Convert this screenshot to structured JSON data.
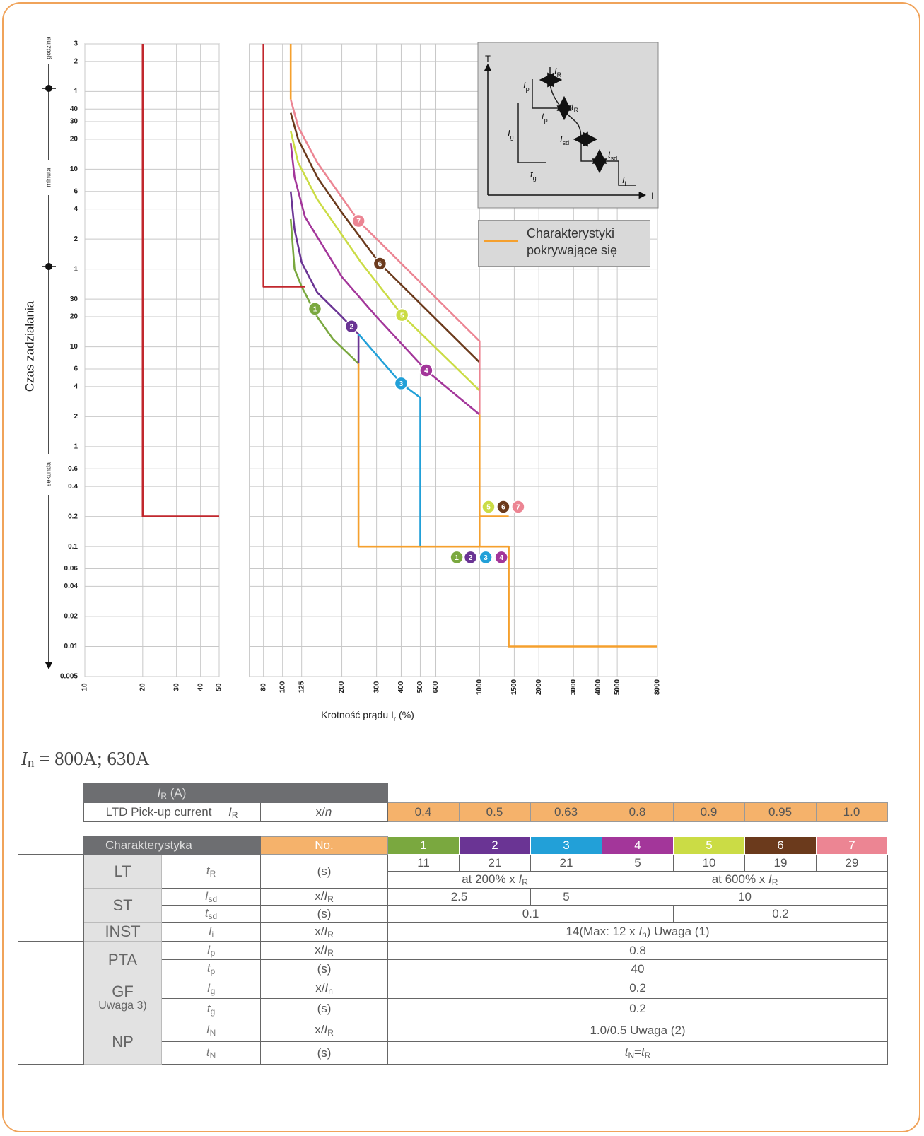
{
  "chart_data": [
    {
      "type": "line",
      "ylabel": "Czas zadziałania",
      "xlim": [
        10,
        50
      ],
      "xticks": [
        10,
        20,
        30,
        40,
        50
      ],
      "log_x": true,
      "ylim": [
        0.005,
        10800
      ],
      "log_y": true,
      "grid": true,
      "ytick_labels": true,
      "yticks": [
        {
          "value": 10800,
          "label": "3"
        },
        {
          "value": 7200,
          "label": "2"
        },
        {
          "value": 3600,
          "label": "1"
        },
        {
          "value": 2400,
          "label": "40"
        },
        {
          "value": 1800,
          "label": "30"
        },
        {
          "value": 1200,
          "label": "20"
        },
        {
          "value": 600,
          "label": "10"
        },
        {
          "value": 360,
          "label": "6"
        },
        {
          "value": 240,
          "label": "4"
        },
        {
          "value": 120,
          "label": "2"
        },
        {
          "value": 60,
          "label": "1"
        },
        30,
        20,
        10,
        6,
        4,
        2,
        1,
        0.6,
        0.4,
        0.2,
        0.1,
        0.06,
        0.04,
        0.02,
        0.01,
        0.005
      ],
      "time_units": [
        "godzina",
        "minuta",
        "sekunda"
      ],
      "series": [
        {
          "color": "#c1272d",
          "x": [
            20,
            20,
            50
          ],
          "values": [
            10800,
            0.2,
            0.2
          ]
        }
      ]
    },
    {
      "type": "line",
      "xlabel": [
        {
          "t": "Krotność prądu I"
        },
        {
          "t": "r",
          "s": "sub"
        },
        {
          "t": " (%)"
        }
      ],
      "xlim": [
        68,
        8000
      ],
      "xticks": [
        80,
        100,
        125,
        200,
        300,
        400,
        500,
        600,
        1000,
        1500,
        2000,
        3000,
        4000,
        5000,
        8000
      ],
      "log_x": true,
      "ylim": [
        0.005,
        10800
      ],
      "log_y": true,
      "grid": true,
      "ytick_labels": false,
      "yticks": [
        10800,
        7200,
        3600,
        2400,
        1800,
        1200,
        600,
        360,
        240,
        120,
        60,
        30,
        20,
        10,
        6,
        4,
        2,
        1,
        0.6,
        0.4,
        0.2,
        0.1,
        0.06,
        0.04,
        0.02,
        0.01,
        0.005
      ],
      "series": [
        {
          "name": "1",
          "color": "#7aa83f",
          "x": [
            110,
            115,
            125,
            150,
            180,
            243
          ],
          "values": [
            190,
            60,
            40,
            20,
            12,
            6.8
          ],
          "markers": [
            {
              "x": 146,
              "y": 24
            },
            {
              "x": 766,
              "y": 0.078
            }
          ]
        },
        {
          "name": "2",
          "color": "#6a3494",
          "x": [
            110,
            115,
            125,
            150,
            200,
            243,
            243
          ],
          "values": [
            360,
            150,
            70,
            35,
            20,
            13.4,
            6.8
          ],
          "markers": [
            {
              "x": 224,
              "y": 16
            },
            {
              "x": 900,
              "y": 0.078
            }
          ]
        },
        {
          "name": "3",
          "color": "#22a0d8",
          "x": [
            243,
            400,
            500,
            500
          ],
          "values": [
            13.4,
            4.3,
            3.1,
            0.1
          ],
          "markers": [
            {
              "x": 400,
              "y": 4.3
            },
            {
              "x": 1075,
              "y": 0.078
            }
          ]
        },
        {
          "name": "4",
          "color": "#a3369a",
          "x": [
            110,
            115,
            130,
            200,
            300,
            536,
            1000
          ],
          "values": [
            1100,
            500,
            200,
            50,
            20,
            5.8,
            2.1
          ],
          "markers": [
            {
              "x": 536,
              "y": 5.8
            },
            {
              "x": 1290,
              "y": 0.078
            }
          ]
        },
        {
          "name": "5",
          "color": "#cbdc45",
          "x": [
            110,
            120,
            150,
            250,
            404,
            1000
          ],
          "values": [
            1450,
            700,
            300,
            70,
            20.8,
            3.65
          ],
          "markers": [
            {
              "x": 404,
              "y": 20.8
            },
            {
              "x": 1110,
              "y": 0.25
            }
          ]
        },
        {
          "name": "6",
          "color": "#6b3a1c",
          "x": [
            110,
            120,
            150,
            200,
            312,
            1000
          ],
          "values": [
            2200,
            1200,
            500,
            220,
            68,
            7
          ],
          "markers": [
            {
              "x": 312,
              "y": 68
            },
            {
              "x": 1320,
              "y": 0.25
            }
          ]
        },
        {
          "name": "7",
          "color": "#ec8593",
          "x": [
            110,
            120,
            150,
            243,
            1000,
            1000
          ],
          "values": [
            3000,
            1600,
            700,
            182,
            11.4,
            2.1
          ],
          "markers": [
            {
              "x": 243,
              "y": 182
            },
            {
              "x": 1570,
              "y": 0.25
            }
          ]
        },
        {
          "name": "Charakterystyki pokrywające się",
          "color": "#f5a02e",
          "x": [
            110,
            110,
            null,
            243,
            243,
            1406,
            1406,
            8000,
            null,
            1000,
            1000,
            null,
            1000,
            1406
          ],
          "values": [
            10800,
            3000,
            null,
            6.8,
            0.1,
            0.1,
            0.01,
            0.01,
            null,
            2.1,
            0.1,
            null,
            0.2,
            0.2
          ]
        },
        {
          "color": "#c1272d",
          "x": [
            80,
            80,
            130
          ],
          "values": [
            10800,
            40,
            40
          ]
        }
      ]
    }
  ],
  "inset": {
    "t_axis": "T",
    "i_axis": "I",
    "labels": [
      [
        {
          "t": "I",
          "s": "i"
        },
        {
          "t": "p",
          "s": "sub"
        }
      ],
      [
        {
          "t": "I",
          "s": "i"
        },
        {
          "t": "R",
          "s": "sub"
        }
      ],
      [
        {
          "t": "t",
          "s": "i"
        },
        {
          "t": "p",
          "s": "sub"
        }
      ],
      [
        {
          "t": "t",
          "s": "i"
        },
        {
          "t": "R",
          "s": "sub"
        }
      ],
      [
        {
          "t": "I",
          "s": "i"
        },
        {
          "t": "g",
          "s": "sub"
        }
      ],
      [
        {
          "t": "I",
          "s": "i"
        },
        {
          "t": "sd",
          "s": "sub"
        }
      ],
      [
        {
          "t": "t",
          "s": "i"
        },
        {
          "t": "g",
          "s": "sub"
        }
      ],
      [
        {
          "t": "t",
          "s": "i"
        },
        {
          "t": "sd",
          "s": "sub"
        }
      ],
      [
        {
          "t": "I",
          "s": "i"
        },
        {
          "t": "i",
          "s": "sub"
        }
      ]
    ]
  },
  "heading": [
    {
      "t": "I",
      "s": "i"
    },
    {
      "t": "n",
      "s": "sub"
    },
    {
      "t": " = 800A; 630A"
    }
  ],
  "table": {
    "ir_header": [
      {
        "t": "I",
        "s": "i"
      },
      {
        "t": "R",
        "s": "sub"
      },
      {
        "t": " (A)"
      }
    ],
    "pickup": {
      "label": "LTD Pick-up current",
      "symbol": [
        {
          "t": "I",
          "s": "i"
        },
        {
          "t": "R",
          "s": "sub"
        }
      ],
      "unit": [
        {
          "t": "x/"
        },
        {
          "t": "n",
          "s": "i"
        }
      ],
      "values": [
        "0.4",
        "0.5",
        "0.63",
        "0.8",
        "0.9",
        "0.95",
        "1.0"
      ]
    },
    "header": {
      "characteristic": "Charakterystyka",
      "number": "No."
    },
    "lt": {
      "name": "LT",
      "symbol": [
        {
          "t": "t",
          "s": "i"
        },
        {
          "t": "R",
          "s": "sub"
        }
      ],
      "unit": "(s)",
      "values": [
        "11",
        "21",
        "21",
        "5",
        "10",
        "19",
        "29"
      ],
      "notes": [
        [
          {
            "t": "at 200% x "
          },
          {
            "t": "I",
            "s": "i"
          },
          {
            "t": "R",
            "s": "sub"
          }
        ],
        [
          {
            "t": "at 600% x "
          },
          {
            "t": "I",
            "s": "i"
          },
          {
            "t": "R",
            "s": "sub"
          }
        ]
      ]
    },
    "st": {
      "name": "ST",
      "rows": [
        {
          "symbol": [
            {
              "t": "I",
              "s": "i"
            },
            {
              "t": "sd",
              "s": "sub"
            }
          ],
          "unit": [
            {
              "t": "x/"
            },
            {
              "t": "I",
              "s": "i"
            },
            {
              "t": "R",
              "s": "sub"
            }
          ],
          "values": [
            "2.5",
            "5",
            "10"
          ]
        },
        {
          "symbol": [
            {
              "t": "t",
              "s": "i"
            },
            {
              "t": "sd",
              "s": "sub"
            }
          ],
          "unit": "(s)",
          "values": [
            "0.1",
            "0.2"
          ]
        }
      ]
    },
    "inst": {
      "name": "INST",
      "symbol": [
        {
          "t": "I",
          "s": "i"
        },
        {
          "t": "i",
          "s": "sub"
        }
      ],
      "unit": [
        {
          "t": "x/"
        },
        {
          "t": "I",
          "s": "i"
        },
        {
          "t": "R",
          "s": "sub"
        }
      ],
      "value": [
        {
          "t": "14(Max: 12 x "
        },
        {
          "t": "I",
          "s": "i"
        },
        {
          "t": "n",
          "s": "sub"
        },
        {
          "t": ") Uwaga (1)"
        }
      ]
    },
    "pta": {
      "name": "PTA",
      "rows": [
        {
          "symbol": [
            {
              "t": "I",
              "s": "i"
            },
            {
              "t": "p",
              "s": "sub"
            }
          ],
          "unit": [
            {
              "t": "x/"
            },
            {
              "t": "I",
              "s": "i"
            },
            {
              "t": "R",
              "s": "sub"
            }
          ],
          "value": "0.8"
        },
        {
          "symbol": [
            {
              "t": "t",
              "s": "i"
            },
            {
              "t": "p",
              "s": "sub"
            }
          ],
          "unit": "(s)",
          "value": "40"
        }
      ]
    },
    "gf": {
      "name": "GF",
      "note": "Uwaga 3)",
      "rows": [
        {
          "symbol": [
            {
              "t": "I",
              "s": "i"
            },
            {
              "t": "g",
              "s": "sub"
            }
          ],
          "unit": [
            {
              "t": "x/"
            },
            {
              "t": "I",
              "s": "i"
            },
            {
              "t": "n",
              "s": "sub"
            }
          ],
          "value": "0.2"
        },
        {
          "symbol": [
            {
              "t": "t",
              "s": "i"
            },
            {
              "t": "g",
              "s": "sub"
            }
          ],
          "unit": "(s)",
          "value": "0.2"
        }
      ]
    },
    "np": {
      "name": "NP",
      "rows": [
        {
          "symbol": [
            {
              "t": "I",
              "s": "i"
            },
            {
              "t": "N",
              "s": "sub"
            }
          ],
          "unit": [
            {
              "t": "x/"
            },
            {
              "t": "I",
              "s": "i"
            },
            {
              "t": "R",
              "s": "sub"
            }
          ],
          "value": "1.0/0.5 Uwaga (2)"
        },
        {
          "symbol": [
            {
              "t": "t",
              "s": "i"
            },
            {
              "t": "N",
              "s": "sub"
            }
          ],
          "unit": "(s)",
          "value": [
            {
              "t": "t",
              "s": "i"
            },
            {
              "t": "N",
              "s": "sub"
            },
            {
              "t": "="
            },
            {
              "t": "t",
              "s": "i"
            },
            {
              "t": "R",
              "s": "sub"
            }
          ]
        }
      ]
    }
  }
}
